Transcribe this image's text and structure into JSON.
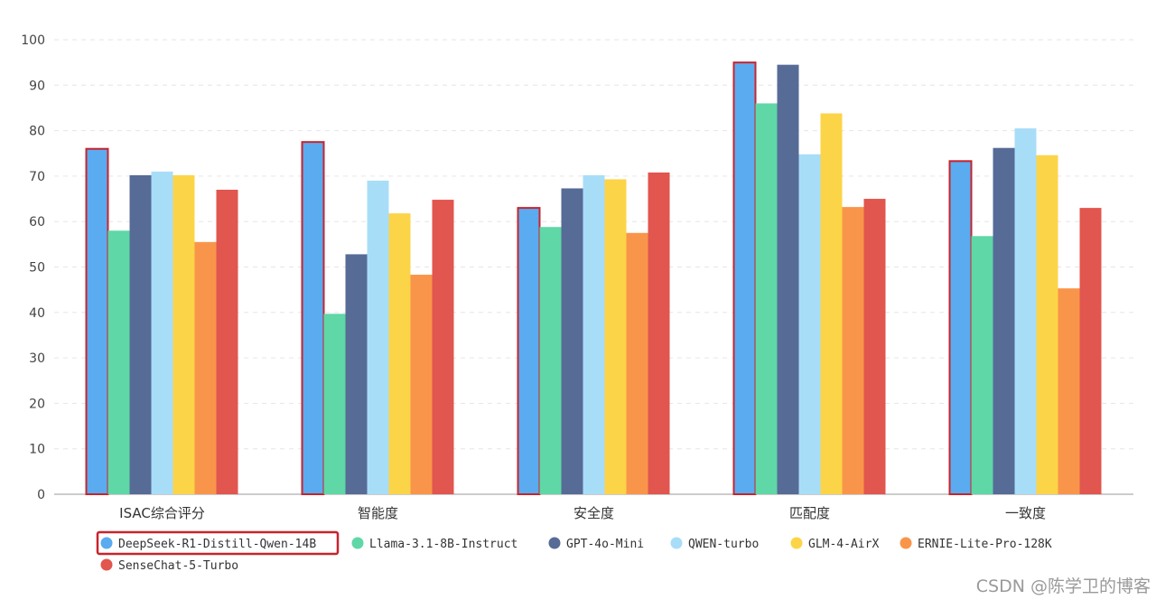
{
  "chart_data": {
    "type": "bar",
    "categories": [
      "ISAC综合评分",
      "智能度",
      "安全度",
      "匹配度",
      "一致度"
    ],
    "ylim": [
      0,
      100
    ],
    "yticks": [
      0,
      10,
      20,
      30,
      40,
      50,
      60,
      70,
      80,
      90,
      100
    ],
    "grid": true,
    "legend_position": "bottom-left",
    "highlighted_series": "DeepSeek-R1-Distill-Qwen-14B",
    "series": [
      {
        "name": "DeepSeek-R1-Distill-Qwen-14B",
        "color": "#5aabf0",
        "values": [
          76,
          77.5,
          63,
          95,
          73.3
        ]
      },
      {
        "name": "Llama-3.1-8B-Instruct",
        "color": "#5fd7a6",
        "values": [
          58,
          39.7,
          58.8,
          86,
          56.8
        ]
      },
      {
        "name": "GPT-4o-Mini",
        "color": "#566b96",
        "values": [
          70.2,
          52.8,
          67.3,
          94.5,
          76.2
        ]
      },
      {
        "name": "QWEN-turbo",
        "color": "#a8ddf8",
        "values": [
          71,
          69,
          70.2,
          74.8,
          80.5
        ]
      },
      {
        "name": "GLM-4-AirX",
        "color": "#fcd447",
        "values": [
          70.2,
          61.8,
          69.3,
          83.8,
          74.6
        ]
      },
      {
        "name": "ERNIE-Lite-Pro-128K",
        "color": "#f9954a",
        "values": [
          55.5,
          48.3,
          57.5,
          63.2,
          45.3
        ]
      },
      {
        "name": "SenseChat-5-Turbo",
        "color": "#e1564e",
        "values": [
          67,
          64.8,
          70.8,
          65,
          63
        ]
      }
    ]
  },
  "watermark": "CSDN @陈学卫的博客"
}
